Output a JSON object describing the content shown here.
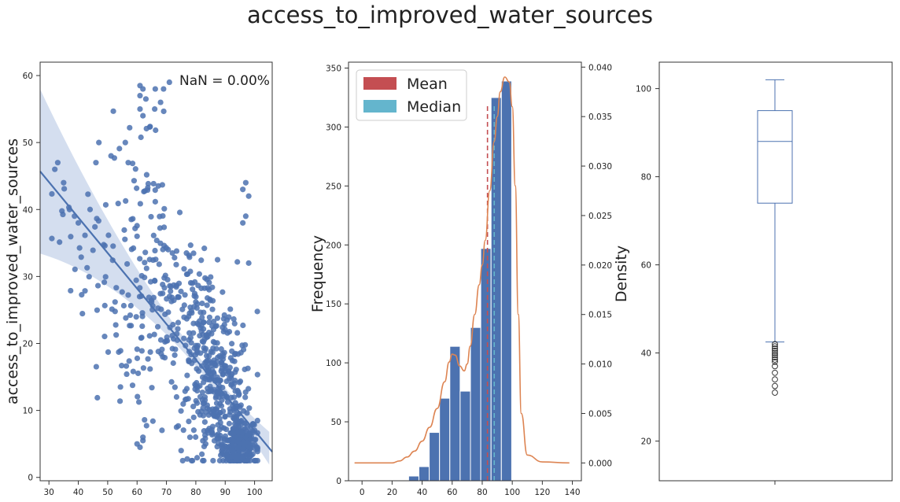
{
  "figure": {
    "title": "access_to_improved_water_sources"
  },
  "colors": {
    "points": "#4c72b0",
    "regression": "#4c72b0",
    "ci_band": "#c5d3ea",
    "bars": "#4c72b0",
    "kde": "#dd8452",
    "mean": "#c44e52",
    "median": "#64b5cd",
    "box": "#4c72b0"
  },
  "chart_data": [
    {
      "type": "scatter",
      "panel": "left",
      "ylabel": "access_to_improved_water_sources",
      "xlabel": "",
      "xlim": [
        27,
        106
      ],
      "ylim": [
        -0.5,
        62
      ],
      "x_ticks": [
        30,
        40,
        50,
        60,
        70,
        80,
        90,
        100
      ],
      "y_ticks": [
        0,
        10,
        20,
        30,
        40,
        50,
        60
      ],
      "annotation": "NaN = 0.00%",
      "regression": {
        "slope": -0.53,
        "intercept": 60.0
      },
      "clusters": [
        {
          "cx": 95,
          "cy": 5,
          "sx": 3,
          "sy": 2,
          "n": 260
        },
        {
          "cx": 88,
          "cy": 12,
          "sx": 5.5,
          "sy": 5,
          "n": 240
        },
        {
          "cx": 82,
          "cy": 20,
          "sx": 6,
          "sy": 6,
          "n": 140
        },
        {
          "cx": 70,
          "cy": 27,
          "sx": 8,
          "sy": 7,
          "n": 110
        },
        {
          "cx": 55,
          "cy": 25,
          "sx": 7,
          "sy": 9,
          "n": 70
        },
        {
          "cx": 62,
          "cy": 45,
          "sx": 5,
          "sy": 7,
          "n": 35
        },
        {
          "cx": 40,
          "cy": 35,
          "sx": 5,
          "sy": 5,
          "n": 20
        }
      ],
      "points": [
        [
          32,
          46
        ],
        [
          33,
          47
        ],
        [
          35,
          44
        ],
        [
          37,
          40
        ],
        [
          40,
          38
        ],
        [
          44,
          40
        ],
        [
          47,
          50
        ],
        [
          46,
          47
        ],
        [
          56,
          50
        ],
        [
          57,
          47
        ],
        [
          61,
          58.5
        ],
        [
          61,
          57
        ],
        [
          62,
          58
        ],
        [
          63,
          56.5
        ],
        [
          61,
          55
        ],
        [
          62,
          54
        ],
        [
          66,
          55
        ],
        [
          68,
          56
        ],
        [
          71,
          59
        ],
        [
          60,
          36
        ],
        [
          97,
          44
        ],
        [
          98,
          42
        ],
        [
          96,
          43
        ],
        [
          97,
          39
        ],
        [
          96,
          38
        ],
        [
          98,
          32
        ],
        [
          60,
          5
        ],
        [
          62,
          6
        ],
        [
          61,
          4.5
        ],
        [
          62,
          5.5
        ],
        [
          75,
          4
        ],
        [
          78,
          6
        ]
      ]
    },
    {
      "type": "bar",
      "panel": "middle",
      "ylabel": "Frequency",
      "ylabel_right": "Density",
      "xlim": [
        -9,
        146
      ],
      "ylim": [
        0,
        355
      ],
      "ylim_right": [
        -0.0018,
        0.0405
      ],
      "x_ticks": [
        0,
        20,
        40,
        60,
        80,
        100,
        120,
        140
      ],
      "y_ticks": [
        0,
        50,
        100,
        150,
        200,
        250,
        300,
        350
      ],
      "y_ticks_right": [
        0.0,
        0.005,
        0.01,
        0.015,
        0.02,
        0.025,
        0.03,
        0.035,
        0.04
      ],
      "bin_width": 6.86,
      "bin_starts": [
        31,
        37.86,
        44.72,
        51.58,
        58.44,
        65.3,
        72.16,
        79.02,
        85.88,
        92.74
      ],
      "values": [
        4,
        12,
        41,
        70,
        114,
        76,
        130,
        197,
        325,
        339
      ],
      "mean": 83.5,
      "median": 88,
      "legend": [
        "Mean",
        "Median"
      ],
      "kde": {
        "x": [
          -5,
          0,
          10,
          20,
          25,
          30,
          35,
          40,
          45,
          50,
          55,
          58,
          60,
          62,
          65,
          68,
          70,
          72,
          75,
          78,
          80,
          82,
          85,
          88,
          90,
          92,
          95,
          98,
          100,
          102,
          104,
          106,
          110,
          120,
          138
        ],
        "y": [
          0,
          0,
          0,
          0,
          0.0002,
          0.0006,
          0.0012,
          0.0022,
          0.0036,
          0.0055,
          0.0082,
          0.0102,
          0.011,
          0.0109,
          0.0098,
          0.0093,
          0.01,
          0.0118,
          0.015,
          0.018,
          0.02,
          0.0225,
          0.0275,
          0.0325,
          0.035,
          0.0375,
          0.039,
          0.0385,
          0.036,
          0.028,
          0.015,
          0.005,
          0.0008,
          0.0001,
          0.0
        ]
      }
    },
    {
      "type": "box",
      "panel": "right",
      "ylim": [
        11,
        106
      ],
      "y_ticks": [
        20,
        40,
        60,
        80,
        100
      ],
      "whisker_low": 42.5,
      "q1": 74,
      "median": 88,
      "q3": 95,
      "whisker_high": 102,
      "outliers": [
        42,
        41.5,
        41,
        40.5,
        40,
        39.5,
        39,
        38.5,
        38,
        37,
        35.5,
        34,
        32.5,
        31
      ]
    }
  ]
}
